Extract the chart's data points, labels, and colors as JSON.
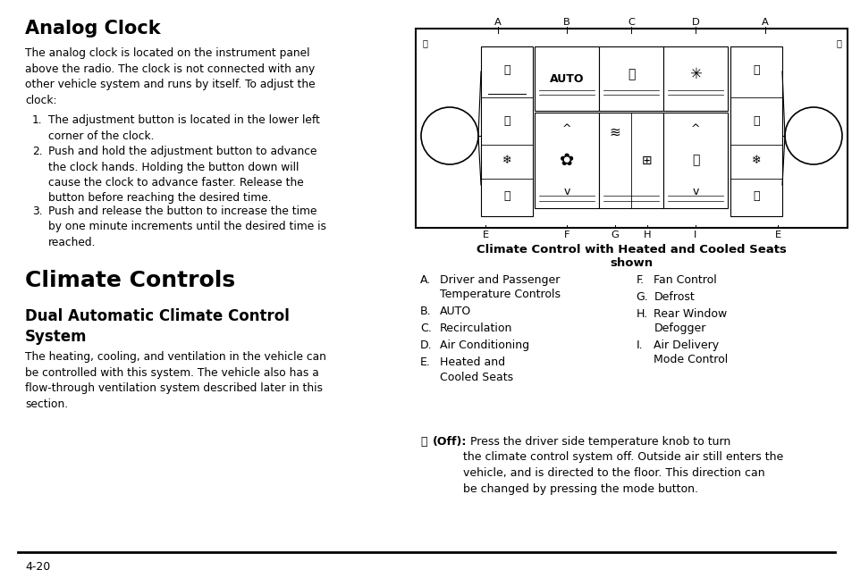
{
  "bg_color": "#ffffff",
  "page_number": "4-20",
  "left_column": {
    "title1": "Analog Clock",
    "para1": "The analog clock is located on the instrument panel\nabove the radio. The clock is not connected with any\nother vehicle system and runs by itself. To adjust the\nclock:",
    "list_items": [
      "The adjustment button is located in the lower left\ncorner of the clock.",
      "Push and hold the adjustment button to advance\nthe clock hands. Holding the button down will\ncause the clock to advance faster. Release the\nbutton before reaching the desired time.",
      "Push and release the button to increase the time\nby one minute increments until the desired time is\nreached."
    ],
    "title2": "Climate Controls",
    "title3": "Dual Automatic Climate Control\nSystem",
    "para2": "The heating, cooling, and ventilation in the vehicle can\nbe controlled with this system. The vehicle also has a\nflow-through ventilation system described later in this\nsection."
  },
  "right_column": {
    "diagram_caption_line1": "Climate Control with Heated and Cooled Seats",
    "diagram_caption_line2": "shown",
    "legend_left": [
      [
        "A.",
        "Driver and Passenger\nTemperature Controls"
      ],
      [
        "B.",
        "AUTO"
      ],
      [
        "C.",
        "Recirculation"
      ],
      [
        "D.",
        "Air Conditioning"
      ],
      [
        "E.",
        "Heated and\nCooled Seats"
      ]
    ],
    "legend_right": [
      [
        "F.",
        "Fan Control"
      ],
      [
        "G.",
        "Defrost"
      ],
      [
        "H.",
        "Rear Window\nDefogger"
      ],
      [
        "I.",
        "Air Delivery\nMode Control"
      ]
    ],
    "off_symbol": "⏽",
    "off_bold": "(Off):",
    "off_rest": "  Press the driver side temperature knob to turn\nthe climate control system off. Outside air still enters the\nvehicle, and is directed to the floor. This direction can\nbe changed by pressing the mode button."
  }
}
